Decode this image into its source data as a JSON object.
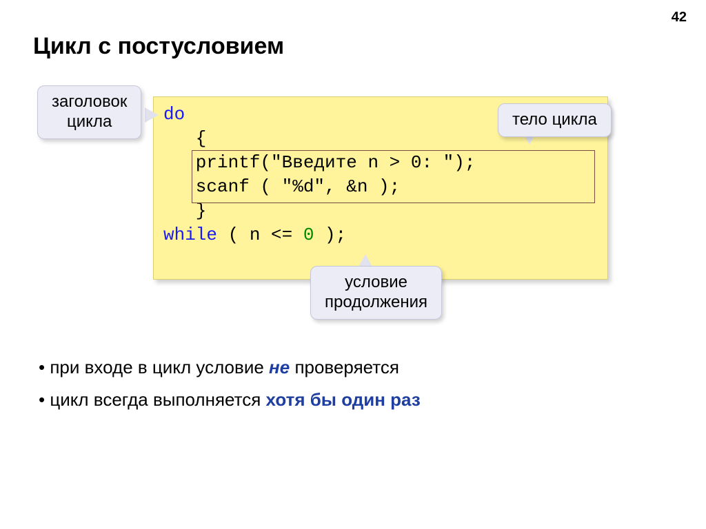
{
  "page_number": "42",
  "title": "Цикл с постусловием",
  "callouts": {
    "header": "заголовок\nцикла",
    "body": "тело цикла",
    "condition": "условие\nпродолжения"
  },
  "code": {
    "do": "do",
    "open": "   {",
    "printf": "   printf(\"Введите n > 0: \");",
    "scanf": "   scanf ( \"%d\", &n );",
    "close": "   }",
    "while_kw": "while",
    "while_mid": " ( n <= ",
    "while_zero": "0",
    "while_end": " );"
  },
  "bullets": {
    "line1_a": "при входе в цикл условие ",
    "line1_b": "не ",
    "line1_c": "проверяется",
    "line2_a": "цикл всегда выполняется ",
    "line2_b": "хотя бы один раз"
  },
  "colors": {
    "code_bg": "#fff49b",
    "callout_bg": "#ececf6",
    "keyword": "#1a1af5",
    "number": "#008800",
    "emphasis": "#1e3fa1"
  }
}
